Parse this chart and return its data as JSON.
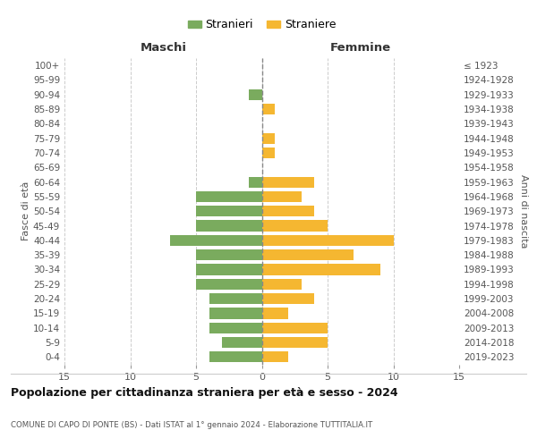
{
  "age_groups": [
    "100+",
    "95-99",
    "90-94",
    "85-89",
    "80-84",
    "75-79",
    "70-74",
    "65-69",
    "60-64",
    "55-59",
    "50-54",
    "45-49",
    "40-44",
    "35-39",
    "30-34",
    "25-29",
    "20-24",
    "15-19",
    "10-14",
    "5-9",
    "0-4"
  ],
  "birth_years": [
    "≤ 1923",
    "1924-1928",
    "1929-1933",
    "1934-1938",
    "1939-1943",
    "1944-1948",
    "1949-1953",
    "1954-1958",
    "1959-1963",
    "1964-1968",
    "1969-1973",
    "1974-1978",
    "1979-1983",
    "1984-1988",
    "1989-1993",
    "1994-1998",
    "1999-2003",
    "2004-2008",
    "2009-2013",
    "2014-2018",
    "2019-2023"
  ],
  "maschi": [
    0,
    0,
    1,
    0,
    0,
    0,
    0,
    0,
    1,
    5,
    5,
    5,
    7,
    5,
    5,
    5,
    4,
    4,
    4,
    3,
    4
  ],
  "femmine": [
    0,
    0,
    0,
    1,
    0,
    1,
    1,
    0,
    4,
    3,
    4,
    5,
    10,
    7,
    9,
    3,
    4,
    2,
    5,
    5,
    2
  ],
  "color_maschi": "#7aab5e",
  "color_femmine": "#f5b731",
  "title_main": "Popolazione per cittadinanza straniera per età e sesso - 2024",
  "title_sub": "COMUNE DI CAPO DI PONTE (BS) - Dati ISTAT al 1° gennaio 2024 - Elaborazione TUTTITALIA.IT",
  "xlabel_left": "Maschi",
  "xlabel_right": "Femmine",
  "ylabel_left": "Fasce di età",
  "ylabel_right": "Anni di nascita",
  "legend_maschi": "Stranieri",
  "legend_femmine": "Straniere",
  "xlim": 15,
  "background_color": "#ffffff",
  "grid_color": "#cccccc"
}
